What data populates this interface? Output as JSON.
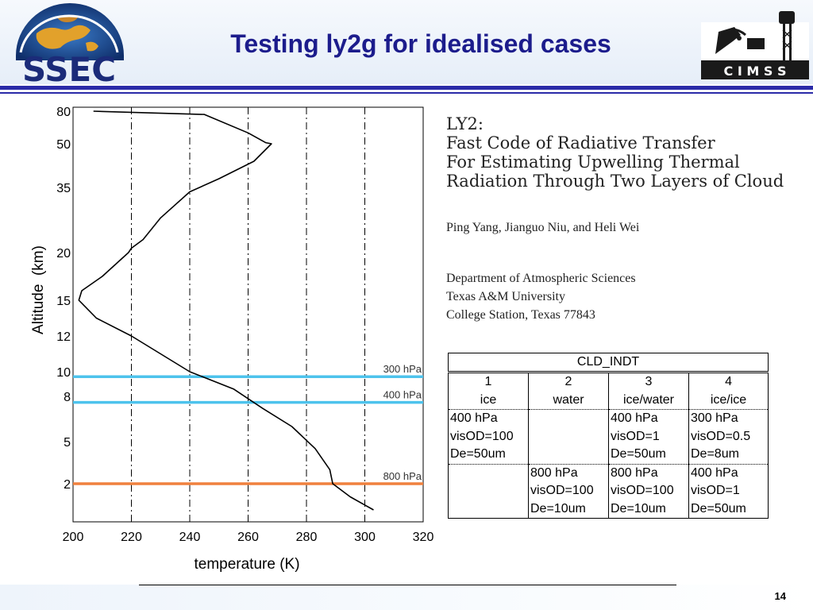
{
  "slide": {
    "title": "Testing ly2g for idealised cases",
    "page_number": "14"
  },
  "logos": {
    "left_text": "SSEC",
    "right_text": "C I M S S"
  },
  "paper": {
    "title_lines": [
      "LY2:",
      "Fast Code of Radiative Transfer",
      "For Estimating Upwelling Thermal",
      "Radiation Through Two Layers of Cloud"
    ],
    "authors": "Ping Yang, Jianguo Niu, and Heli Wei",
    "affiliation_lines": [
      "Department of Atmospheric Sciences",
      "Texas A&M University",
      "College Station, Texas 77843"
    ]
  },
  "cld_table": {
    "header": "CLD_INDT",
    "columns": [
      {
        "num": "1",
        "name": "ice"
      },
      {
        "num": "2",
        "name": "water"
      },
      {
        "num": "3",
        "name": "ice/water"
      },
      {
        "num": "4",
        "name": "ice/ice"
      }
    ],
    "upper_rows": [
      [
        "400 hPa",
        "",
        "400 hPa",
        "300 hPa"
      ],
      [
        "visOD=100",
        "",
        "visOD=1",
        "visOD=0.5"
      ],
      [
        "De=50um",
        "",
        "De=50um",
        "De=8um"
      ]
    ],
    "lower_rows": [
      [
        "",
        "800 hPa",
        "800 hPa",
        "400 hPa"
      ],
      [
        "",
        "visOD=100",
        "visOD=100",
        "visOD=1"
      ],
      [
        "",
        "De=10um",
        "De=10um",
        "De=50um"
      ]
    ]
  },
  "chart_data": {
    "type": "line",
    "title": "",
    "xlabel": "temperature (K)",
    "ylabel": "Altitude  (km)",
    "xlim": [
      200,
      320
    ],
    "x_ticks": [
      200,
      220,
      240,
      260,
      280,
      300,
      320
    ],
    "y_ticks": [
      {
        "label": "2",
        "value": 2
      },
      {
        "label": "5",
        "value": 5
      },
      {
        "label": "8",
        "value": 8
      },
      {
        "label": "10",
        "value": 10
      },
      {
        "label": "12",
        "value": 12
      },
      {
        "label": "15",
        "value": 15
      },
      {
        "label": "20",
        "value": 20
      },
      {
        "label": "35",
        "value": 35
      },
      {
        "label": "50",
        "value": 50
      },
      {
        "label": "80",
        "value": 80
      }
    ],
    "y_scale": "non-uniform (tick labels as printed)",
    "grid": "vertical dash-dot lines at 220, 240, 260, 280, 300 K",
    "profile": [
      {
        "t": 207,
        "z": 80
      },
      {
        "t": 245,
        "z": 77
      },
      {
        "t": 260,
        "z": 60
      },
      {
        "t": 266,
        "z": 51
      },
      {
        "t": 268,
        "z": 50
      },
      {
        "t": 262,
        "z": 44
      },
      {
        "t": 250,
        "z": 38
      },
      {
        "t": 240,
        "z": 34
      },
      {
        "t": 230,
        "z": 28
      },
      {
        "t": 224,
        "z": 23
      },
      {
        "t": 220,
        "z": 21
      },
      {
        "t": 219,
        "z": 20
      },
      {
        "t": 210,
        "z": 17.5
      },
      {
        "t": 203,
        "z": 16
      },
      {
        "t": 202,
        "z": 15
      },
      {
        "t": 208,
        "z": 13.5
      },
      {
        "t": 220,
        "z": 12
      },
      {
        "t": 240,
        "z": 10
      },
      {
        "t": 255,
        "z": 8.6
      },
      {
        "t": 265,
        "z": 7.2
      },
      {
        "t": 275,
        "z": 6
      },
      {
        "t": 283,
        "z": 4.5
      },
      {
        "t": 288,
        "z": 3
      },
      {
        "t": 289,
        "z": 2
      },
      {
        "t": 295,
        "z": 1
      },
      {
        "t": 303,
        "z": 0
      }
    ],
    "reference_lines": [
      {
        "label": "300 hPa",
        "altitude_km": 9.6,
        "color": "#4dc3ec"
      },
      {
        "label": "400 hPa",
        "altitude_km": 7.6,
        "color": "#4dc3ec"
      },
      {
        "label": "800 hPa",
        "altitude_km": 2,
        "color": "#f0813e"
      }
    ],
    "curve_color": "#000000"
  }
}
